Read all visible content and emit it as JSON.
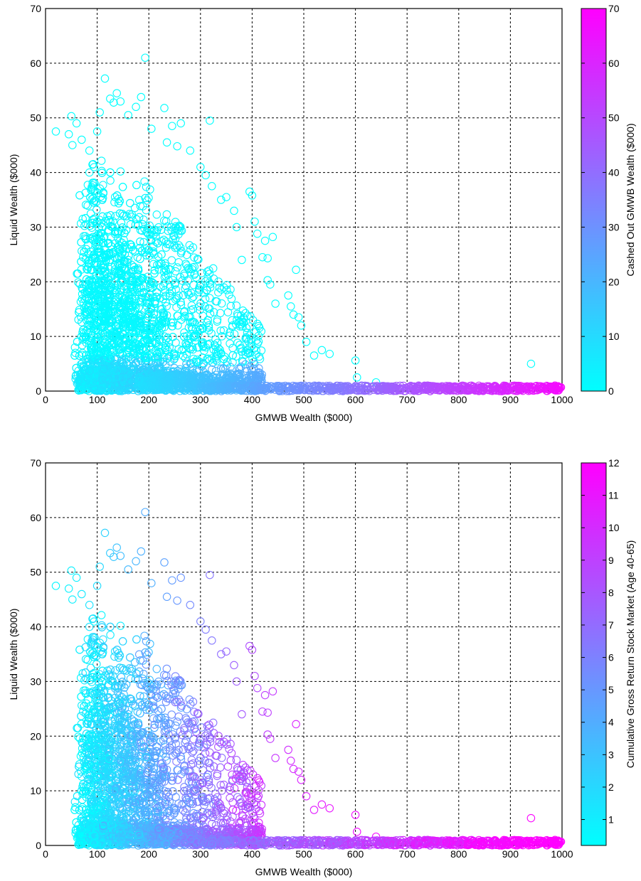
{
  "chart_data": [
    {
      "type": "scatter",
      "xlabel": "GMWB Wealth ($000)",
      "ylabel": "Liquid Wealth ($000)",
      "xlim": [
        0,
        1000
      ],
      "ylim": [
        0,
        70
      ],
      "xticks": [
        "0",
        "100",
        "200",
        "300",
        "400",
        "500",
        "600",
        "700",
        "800",
        "900",
        "1000"
      ],
      "yticks": [
        "0",
        "10",
        "20",
        "30",
        "40",
        "50",
        "60",
        "70"
      ],
      "grid": true,
      "marker": "open-circle",
      "color_by": "cashed_out",
      "colorbar": {
        "label": "Cashed Out GMWB Wealth ($000)",
        "range": [
          0,
          70
        ],
        "ticks": [
          "0",
          "10",
          "20",
          "30",
          "40",
          "50",
          "60",
          "70"
        ],
        "colormap": "cool",
        "color_low": "#00ffff",
        "color_high": "#ff00ff"
      },
      "points_note_ref": "shared"
    },
    {
      "type": "scatter",
      "xlabel": "GMWB Wealth ($000)",
      "ylabel": "Liquid Wealth ($000)",
      "xlim": [
        0,
        1000
      ],
      "ylim": [
        0,
        70
      ],
      "xticks": [
        "0",
        "100",
        "200",
        "300",
        "400",
        "500",
        "600",
        "700",
        "800",
        "900",
        "1000"
      ],
      "yticks": [
        "0",
        "10",
        "20",
        "30",
        "40",
        "50",
        "60",
        "70"
      ],
      "grid": true,
      "marker": "open-circle",
      "color_by": "cum_return",
      "colorbar": {
        "label": "Cumulative Gross Return Stock Market (Age 40-65)",
        "range": [
          0.2,
          12
        ],
        "ticks": [
          "1",
          "2",
          "3",
          "4",
          "5",
          "6",
          "7",
          "8",
          "9",
          "10",
          "11",
          "12"
        ],
        "colormap": "cool",
        "color_low": "#00ffff",
        "color_high": "#ff00ff"
      }
    }
  ],
  "points": [
    [
      20,
      47.5,
      0,
      0.6
    ],
    [
      45,
      47,
      0,
      0.8
    ],
    [
      50,
      50.3,
      0,
      0.9
    ],
    [
      60,
      49,
      0,
      1.0
    ],
    [
      52,
      45,
      0,
      0.9
    ],
    [
      70,
      46,
      0,
      1.2
    ],
    [
      85,
      44,
      0,
      1.5
    ],
    [
      100,
      47.5,
      0,
      1.8
    ],
    [
      105,
      51,
      0,
      2.0
    ],
    [
      115,
      57.2,
      0,
      2.3
    ],
    [
      125,
      53.5,
      0,
      2.6
    ],
    [
      132,
      52.8,
      0,
      2.8
    ],
    [
      138,
      54.5,
      0,
      3.0
    ],
    [
      145,
      53,
      0,
      3.2
    ],
    [
      160,
      50.5,
      0,
      3.4
    ],
    [
      175,
      52,
      0,
      3.6
    ],
    [
      185,
      53.8,
      0,
      3.8
    ],
    [
      193,
      61,
      0,
      4.0
    ],
    [
      205,
      48,
      0,
      3.9
    ],
    [
      230,
      51.8,
      0,
      4.5
    ],
    [
      245,
      48.5,
      0,
      4.8
    ],
    [
      262,
      49,
      0,
      5.1
    ],
    [
      235,
      45.5,
      0,
      4.6
    ],
    [
      255,
      44.8,
      0,
      5.0
    ],
    [
      280,
      44,
      0,
      5.6
    ],
    [
      300,
      41,
      0,
      6.0
    ],
    [
      310,
      39.5,
      0,
      6.2
    ],
    [
      318,
      49.5,
      0,
      6.5
    ],
    [
      322,
      37.5,
      0,
      6.4
    ],
    [
      340,
      35,
      0,
      6.9
    ],
    [
      350,
      35.5,
      0,
      7.2
    ],
    [
      365,
      33,
      0,
      7.5
    ],
    [
      370,
      30,
      0,
      7.6
    ],
    [
      380,
      24,
      0,
      7.8
    ],
    [
      395,
      36.5,
      0,
      8.3
    ],
    [
      400,
      35.8,
      0,
      8.5
    ],
    [
      405,
      31,
      0,
      8.4
    ],
    [
      410,
      28.8,
      0,
      8.6
    ],
    [
      420,
      24.5,
      0,
      8.8
    ],
    [
      425,
      27.5,
      0,
      9.0
    ],
    [
      430,
      24.3,
      0,
      9.0
    ],
    [
      440,
      28.2,
      0,
      9.3
    ],
    [
      430,
      20.3,
      0,
      9.1
    ],
    [
      435,
      19.5,
      0,
      9.2
    ],
    [
      445,
      16,
      0,
      9.4
    ],
    [
      470,
      17.5,
      0,
      9.8
    ],
    [
      475,
      15.5,
      0,
      9.9
    ],
    [
      480,
      14,
      0,
      10.0
    ],
    [
      485,
      22.2,
      0,
      10.3
    ],
    [
      490,
      13.5,
      0,
      10.1
    ],
    [
      495,
      12,
      0,
      10.3
    ],
    [
      505,
      9,
      0,
      10.4
    ],
    [
      520,
      6.5,
      0,
      10.6
    ],
    [
      535,
      7.5,
      0,
      10.8
    ],
    [
      550,
      6.8,
      0,
      11.0
    ],
    [
      600,
      5.6,
      0,
      11.3
    ],
    [
      603,
      2.5,
      0,
      11.4
    ],
    [
      640,
      1.6,
      0,
      11.5
    ],
    [
      940,
      5,
      0,
      11.8
    ],
    [
      85,
      40,
      1,
      1.5
    ],
    [
      95,
      38,
      2,
      1.7
    ],
    [
      110,
      35,
      1,
      2.0
    ],
    [
      120,
      32,
      2,
      2.2
    ],
    [
      130,
      30,
      1,
      2.4
    ],
    [
      140,
      28,
      2,
      2.6
    ],
    [
      150,
      26,
      1,
      2.8
    ],
    [
      160,
      24,
      2,
      3.0
    ],
    [
      170,
      22,
      3,
      3.2
    ],
    [
      180,
      20,
      2,
      3.4
    ],
    [
      190,
      18,
      3,
      3.6
    ],
    [
      200,
      16,
      4,
      3.8
    ],
    [
      210,
      14,
      5,
      4.0
    ],
    [
      220,
      12,
      6,
      4.2
    ],
    [
      230,
      10,
      7,
      4.4
    ],
    [
      240,
      8,
      8,
      4.6
    ],
    [
      250,
      6,
      10,
      4.8
    ],
    [
      260,
      4,
      12,
      5.0
    ],
    [
      270,
      3,
      14,
      5.2
    ],
    [
      280,
      2,
      16,
      5.4
    ],
    [
      290,
      1,
      18,
      5.6
    ],
    [
      300,
      0.5,
      20,
      5.8
    ]
  ]
}
